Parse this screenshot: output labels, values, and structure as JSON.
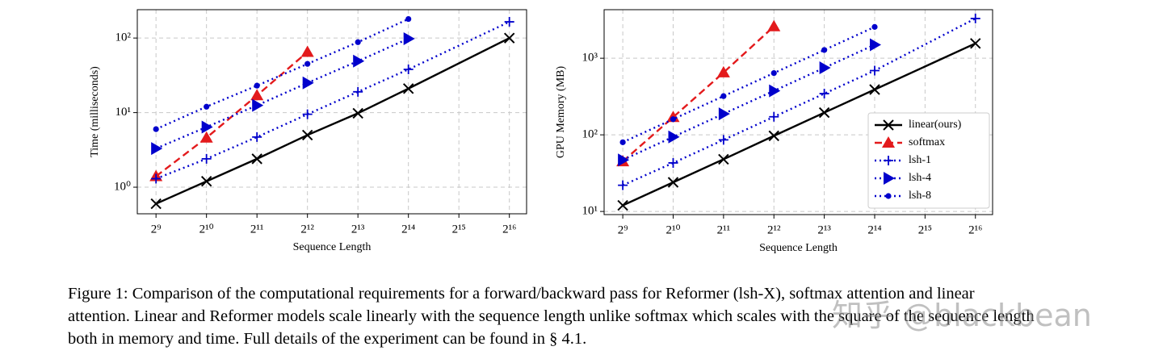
{
  "chart_data": [
    {
      "type": "line",
      "x_label": "Sequence Length",
      "y_label": "Time (milliseconds)",
      "xscale": "log",
      "yscale": "log",
      "grid": true,
      "xlim": [
        396,
        83000
      ],
      "ylim": [
        0.44,
        240
      ],
      "xticks": [
        {
          "value": 512,
          "label": "2⁹"
        },
        {
          "value": 1024,
          "label": "2¹⁰"
        },
        {
          "value": 2048,
          "label": "2¹¹"
        },
        {
          "value": 4096,
          "label": "2¹²"
        },
        {
          "value": 8192,
          "label": "2¹³"
        },
        {
          "value": 16384,
          "label": "2¹⁴"
        },
        {
          "value": 32768,
          "label": "2¹⁵"
        },
        {
          "value": 65536,
          "label": "2¹⁶"
        }
      ],
      "yticks": [
        {
          "value": 1,
          "label": "10⁰"
        },
        {
          "value": 10,
          "label": "10¹"
        },
        {
          "value": 100,
          "label": "10²"
        }
      ],
      "series": [
        {
          "name": "linear(ours)",
          "color": "#000000",
          "marker": "x",
          "dash": "solid",
          "x": [
            512,
            1024,
            2048,
            4096,
            8192,
            16384,
            65536
          ],
          "values": [
            0.6,
            1.2,
            2.4,
            5,
            9.8,
            21,
            100
          ]
        },
        {
          "name": "softmax",
          "color": "#e31a1c",
          "marker": "^",
          "dash": "dashed",
          "x": [
            512,
            1024,
            2048,
            4096
          ],
          "values": [
            1.4,
            4.6,
            17,
            65
          ]
        },
        {
          "name": "lsh-1",
          "color": "#0000cc",
          "marker": "+",
          "dash": "dotted",
          "x": [
            512,
            1024,
            2048,
            4096,
            8192,
            16384,
            65536
          ],
          "values": [
            1.3,
            2.4,
            4.7,
            9.5,
            19,
            38,
            165
          ]
        },
        {
          "name": "lsh-4",
          "color": "#0000cc",
          "marker": ">",
          "dash": "dotted",
          "x": [
            512,
            1024,
            2048,
            4096,
            8192,
            16384
          ],
          "values": [
            3.3,
            6.4,
            12.5,
            25,
            49,
            98
          ]
        },
        {
          "name": "lsh-8",
          "color": "#0000cc",
          "marker": "o",
          "dash": "dotted",
          "x": [
            512,
            1024,
            2048,
            4096,
            8192,
            16384
          ],
          "values": [
            6,
            12,
            23,
            45,
            88,
            180
          ]
        }
      ]
    },
    {
      "type": "line",
      "x_label": "Sequence Length",
      "y_label": "GPU Memory (MB)",
      "xscale": "log",
      "yscale": "log",
      "grid": true,
      "legend": "lower right",
      "xlim": [
        396,
        83000
      ],
      "ylim": [
        9.1,
        4300
      ],
      "xticks": [
        {
          "value": 512,
          "label": "2⁹"
        },
        {
          "value": 1024,
          "label": "2¹⁰"
        },
        {
          "value": 2048,
          "label": "2¹¹"
        },
        {
          "value": 4096,
          "label": "2¹²"
        },
        {
          "value": 8192,
          "label": "2¹³"
        },
        {
          "value": 16384,
          "label": "2¹⁴"
        },
        {
          "value": 32768,
          "label": "2¹⁵"
        },
        {
          "value": 65536,
          "label": "2¹⁶"
        }
      ],
      "yticks": [
        {
          "value": 10,
          "label": "10¹"
        },
        {
          "value": 100,
          "label": "10²"
        },
        {
          "value": 1000,
          "label": "10³"
        }
      ],
      "series": [
        {
          "name": "linear(ours)",
          "color": "#000000",
          "marker": "x",
          "dash": "solid",
          "x": [
            512,
            1024,
            2048,
            4096,
            8192,
            16384,
            65536
          ],
          "values": [
            12,
            24,
            48,
            97,
            195,
            390,
            1560
          ]
        },
        {
          "name": "softmax",
          "color": "#e31a1c",
          "marker": "^",
          "dash": "dashed",
          "x": [
            512,
            1024,
            2048,
            4096
          ],
          "values": [
            45,
            170,
            650,
            2600
          ]
        },
        {
          "name": "lsh-1",
          "color": "#0000cc",
          "marker": "+",
          "dash": "dotted",
          "x": [
            512,
            1024,
            2048,
            4096,
            8192,
            16384,
            65536
          ],
          "values": [
            22,
            43,
            86,
            172,
            345,
            690,
            3300
          ]
        },
        {
          "name": "lsh-4",
          "color": "#0000cc",
          "marker": ">",
          "dash": "dotted",
          "x": [
            512,
            1024,
            2048,
            4096,
            8192,
            16384
          ],
          "values": [
            47,
            94,
            188,
            375,
            750,
            1500
          ]
        },
        {
          "name": "lsh-8",
          "color": "#0000cc",
          "marker": "o",
          "dash": "dotted",
          "x": [
            512,
            1024,
            2048,
            4096,
            8192,
            16384
          ],
          "values": [
            80,
            160,
            320,
            640,
            1280,
            2560
          ]
        }
      ]
    }
  ],
  "caption": "Figure 1: Comparison of the computational requirements for a forward/backward pass for Reformer (lsh-X), softmax attention and linear attention. Linear and Reformer models scale linearly with the sequence length unlike softmax which scales with the square of the sequence length both in memory and time. Full details of the experiment can be found in § 4.1.",
  "watermark": "知乎 @blackbean"
}
